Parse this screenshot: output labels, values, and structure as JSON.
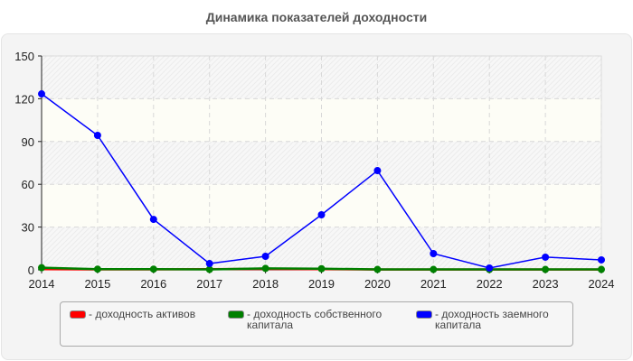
{
  "title": "Динамика показателей доходности",
  "chart_data": {
    "type": "line",
    "title": "Динамика показателей доходности",
    "xlabel": "",
    "ylabel": "",
    "categories": [
      "2014",
      "2015",
      "2016",
      "2017",
      "2018",
      "2019",
      "2020",
      "2021",
      "2022",
      "2023",
      "2024"
    ],
    "ylim": [
      0,
      150
    ],
    "yticks": [
      0,
      30,
      60,
      90,
      120,
      150
    ],
    "grid": true,
    "legend_position": "bottom",
    "series": [
      {
        "name": "доходность активов",
        "color": "#ff0000",
        "values": [
          0.5,
          0.3,
          0.3,
          0.5,
          0.6,
          0.5,
          0.2,
          0.2,
          0.2,
          0.2,
          0.2
        ]
      },
      {
        "name": "доходность собственного капитала",
        "color": "#008000",
        "values": [
          1.5,
          0.5,
          0.5,
          0.3,
          1.0,
          0.8,
          0.3,
          0.3,
          0.3,
          0.3,
          0.3
        ]
      },
      {
        "name": "доходность заемного капитала",
        "color": "#0000ff",
        "values": [
          123.4,
          94.3,
          35.4,
          4.4,
          9.5,
          38.6,
          69.6,
          11.4,
          1.3,
          8.9,
          7.0
        ]
      }
    ]
  },
  "legend": {
    "items": [
      {
        "line1": "- доходность активов",
        "line2": "",
        "color": "#ff0000"
      },
      {
        "line1": "- доходность собственного",
        "line2": "капитала",
        "color": "#008000"
      },
      {
        "line1": "- доходность заемного",
        "line2": "капитала",
        "color": "#0000ff"
      }
    ]
  }
}
